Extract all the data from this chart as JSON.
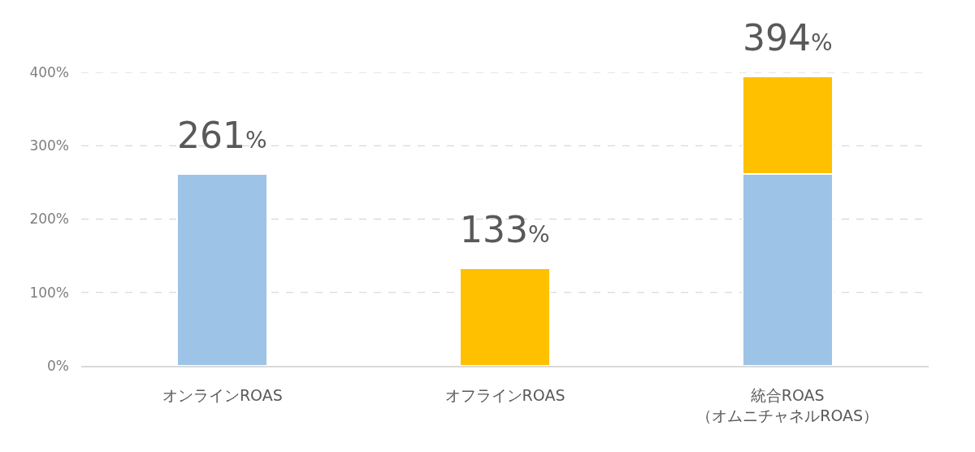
{
  "chart_data": {
    "type": "bar",
    "stacked": true,
    "categories": [
      "オンラインROAS",
      "オフラインROAS",
      "統合ROAS\n（オムニチャネルROAS）"
    ],
    "series": [
      {
        "color": "#9dc3e6",
        "values": [
          261,
          null,
          261
        ]
      },
      {
        "color": "#ffc000",
        "values": [
          null,
          133,
          133
        ]
      }
    ],
    "totals": [
      "261%",
      "133%",
      "394%"
    ],
    "ylim": [
      0,
      400
    ],
    "yticks": [
      {
        "value": 0,
        "label": "0%"
      },
      {
        "value": 100,
        "label": "100%"
      },
      {
        "value": 200,
        "label": "200%"
      },
      {
        "value": 300,
        "label": "300%"
      },
      {
        "value": 400,
        "label": "400%"
      }
    ],
    "grid": "y"
  }
}
